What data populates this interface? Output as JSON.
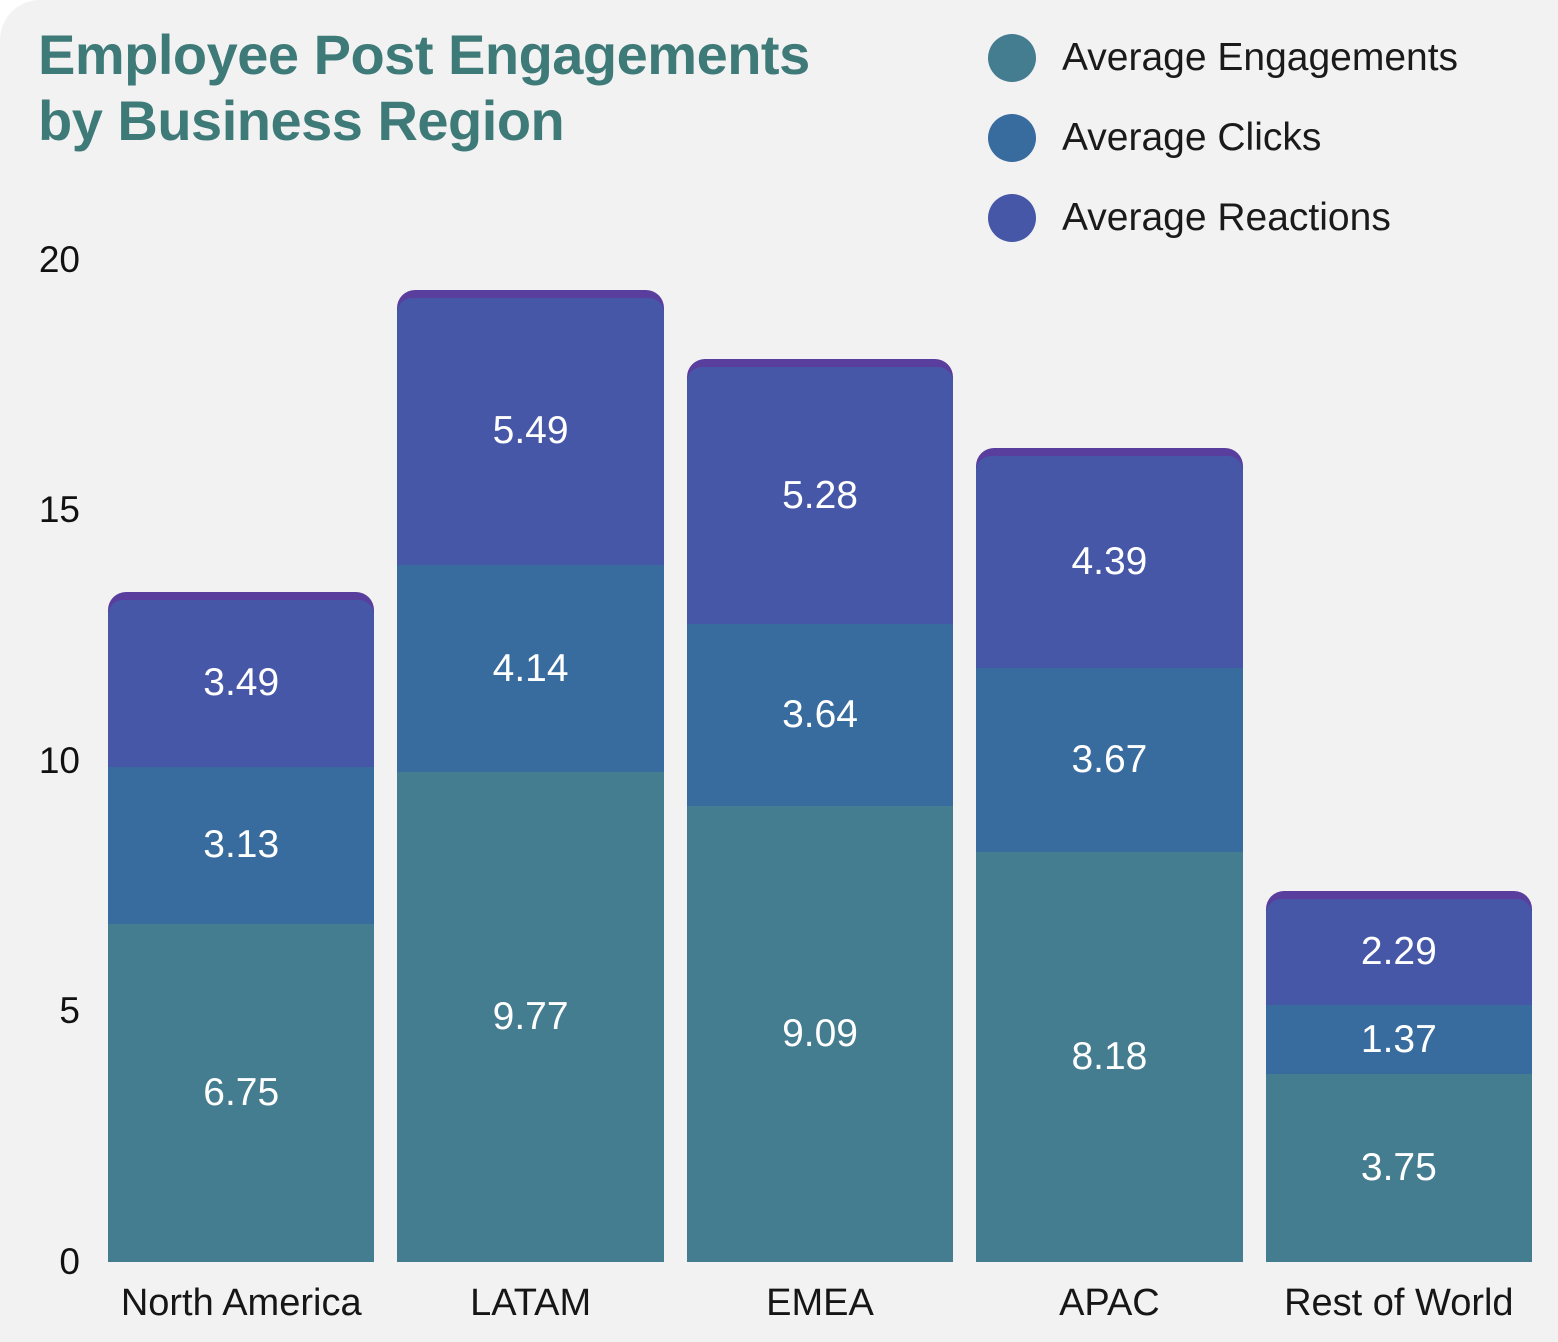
{
  "title": "Employee Post Engagements\nby Business Region",
  "colors": {
    "background": "#F3F2F3",
    "title_text": "#3E7A78",
    "axis_text": "#111111",
    "legend_text": "#1A1A1A",
    "value_label_text": "#FFFFFF",
    "bar_cap": "#5A3E9D"
  },
  "chart_data": {
    "type": "bar",
    "stacked": true,
    "title": "Employee Post Engagements by Business Region",
    "categories": [
      "North America",
      "LATAM",
      "EMEA",
      "APAC",
      "Rest of World"
    ],
    "series": [
      {
        "name": "Average Engagements",
        "color": "#447C90",
        "values": [
          6.75,
          9.77,
          9.09,
          8.18,
          3.75
        ]
      },
      {
        "name": "Average Clicks",
        "color": "#386B9E",
        "values": [
          3.13,
          4.14,
          3.64,
          3.67,
          1.37
        ]
      },
      {
        "name": "Average Reactions",
        "color": "#4657A7",
        "values": [
          3.49,
          5.49,
          5.28,
          4.39,
          2.29
        ]
      }
    ],
    "stack_totals": [
      13.37,
      19.4,
      18.01,
      16.24,
      7.41
    ],
    "xlabel": "",
    "ylabel": "",
    "ylim": [
      0,
      20
    ],
    "yticks": [
      0,
      5,
      10,
      15,
      20
    ],
    "grid": false,
    "legend_position": "top-right",
    "value_labels": true,
    "value_label_format": "2-decimals"
  }
}
